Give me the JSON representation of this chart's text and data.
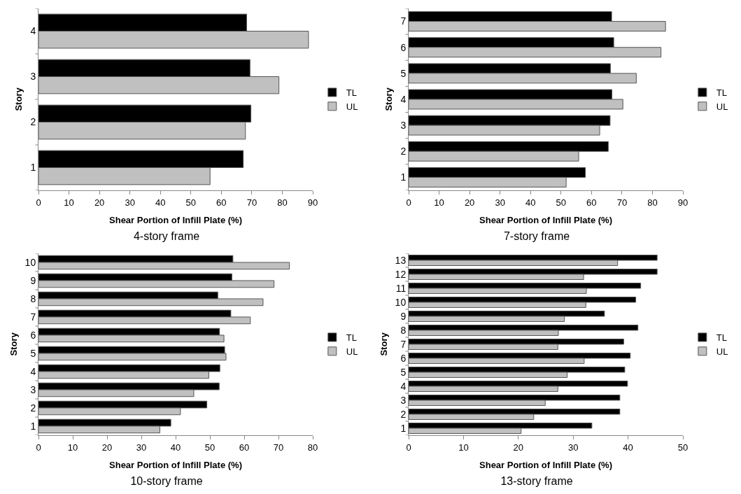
{
  "chart_data": [
    {
      "type": "bar",
      "orientation": "horizontal",
      "title": "4-story frame",
      "xlabel": "Shear Portion of Infill Plate (%)",
      "ylabel": "Story",
      "categories": [
        "4",
        "3",
        "2",
        "1"
      ],
      "xlim": [
        0,
        90
      ],
      "xticks": [
        0,
        10,
        20,
        30,
        40,
        50,
        60,
        70,
        80,
        90
      ],
      "legend": "right",
      "series": [
        {
          "name": "TL",
          "color": "#000000",
          "values": [
            68.3,
            69.4,
            69.7,
            67.2
          ]
        },
        {
          "name": "UL",
          "color": "#c0c0c0",
          "values": [
            88.6,
            78.9,
            67.9,
            56.3
          ]
        }
      ]
    },
    {
      "type": "bar",
      "orientation": "horizontal",
      "title": "7-story frame",
      "xlabel": "Shear Portion of Infill Plate (%)",
      "ylabel": "Story",
      "categories": [
        "7",
        "6",
        "5",
        "4",
        "3",
        "2",
        "1"
      ],
      "xlim": [
        0,
        90
      ],
      "xticks": [
        0,
        10,
        20,
        30,
        40,
        50,
        60,
        70,
        80,
        90
      ],
      "legend": "right",
      "series": [
        {
          "name": "TL",
          "color": "#000000",
          "values": [
            66.6,
            67.3,
            66.2,
            66.7,
            66.1,
            65.5,
            58.0
          ]
        },
        {
          "name": "UL",
          "color": "#c0c0c0",
          "values": [
            84.3,
            82.8,
            74.7,
            70.3,
            62.7,
            55.8,
            51.7
          ]
        }
      ]
    },
    {
      "type": "bar",
      "orientation": "horizontal",
      "title": "10-story frame",
      "xlabel": "Shear Portion of Infill Plate (%)",
      "ylabel": "Story",
      "categories": [
        "10",
        "9",
        "8",
        "7",
        "6",
        "5",
        "4",
        "3",
        "2",
        "1"
      ],
      "xlim": [
        0,
        80
      ],
      "xticks": [
        0,
        10,
        20,
        30,
        40,
        50,
        60,
        70,
        80
      ],
      "legend": "right",
      "series": [
        {
          "name": "TL",
          "color": "#000000",
          "values": [
            56.7,
            56.4,
            52.3,
            56.1,
            52.8,
            54.3,
            52.9,
            52.7,
            49.1,
            38.6
          ]
        },
        {
          "name": "UL",
          "color": "#c0c0c0",
          "values": [
            73.2,
            68.7,
            65.5,
            61.8,
            54.1,
            54.7,
            49.7,
            45.3,
            41.4,
            35.4
          ]
        }
      ]
    },
    {
      "type": "bar",
      "orientation": "horizontal",
      "title": "13-story frame",
      "xlabel": "Shear Portion of Infill Plate (%)",
      "ylabel": "Story",
      "categories": [
        "13",
        "12",
        "11",
        "10",
        "9",
        "8",
        "7",
        "6",
        "5",
        "4",
        "3",
        "2",
        "1"
      ],
      "xlim": [
        0,
        50
      ],
      "xticks": [
        0,
        10,
        20,
        30,
        40,
        50
      ],
      "legend": "right",
      "series": [
        {
          "name": "TL",
          "color": "#000000",
          "values": [
            45.3,
            45.3,
            42.3,
            41.4,
            35.7,
            41.8,
            39.2,
            40.4,
            39.4,
            39.9,
            38.5,
            38.5,
            33.4
          ]
        },
        {
          "name": "UL",
          "color": "#c0c0c0",
          "values": [
            38.1,
            31.9,
            32.4,
            32.3,
            28.4,
            27.3,
            27.2,
            32.0,
            28.9,
            27.2,
            24.9,
            22.8,
            20.5
          ]
        }
      ]
    }
  ]
}
